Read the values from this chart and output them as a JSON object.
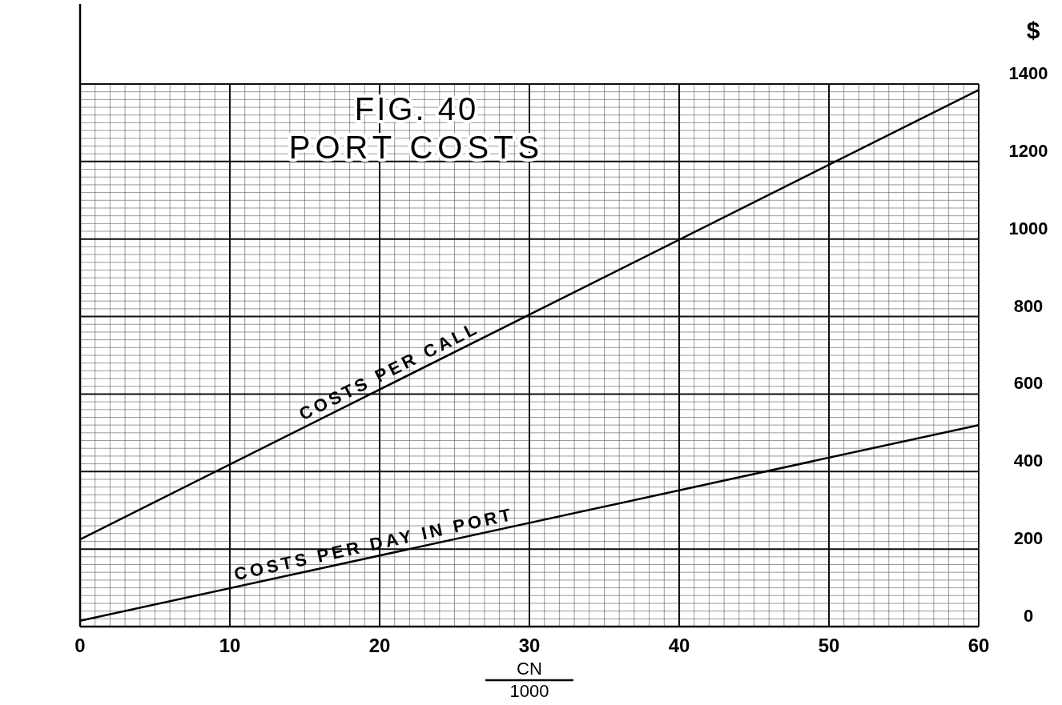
{
  "chart_data": {
    "type": "line",
    "title": "FIG. 40",
    "subtitle": "PORT COSTS",
    "xlabel": "CN\n1000",
    "ylabel": "$",
    "x": [
      0,
      60
    ],
    "series": [
      {
        "name": "COSTS PER CALL",
        "color": "#000000",
        "values": [
          225,
          1385
        ]
      },
      {
        "name": "COSTS PER DAY IN PORT",
        "color": "#000000",
        "values": [
          15,
          520
        ]
      }
    ],
    "xlim": [
      0,
      60
    ],
    "xticks": [
      0,
      10,
      20,
      30,
      40,
      50,
      60
    ],
    "ylim": [
      0,
      1400
    ],
    "yticks": [
      0,
      200,
      400,
      600,
      800,
      1000,
      1200,
      1400
    ],
    "grid": true,
    "legend": false,
    "marker": "none",
    "line_style": "solid"
  }
}
